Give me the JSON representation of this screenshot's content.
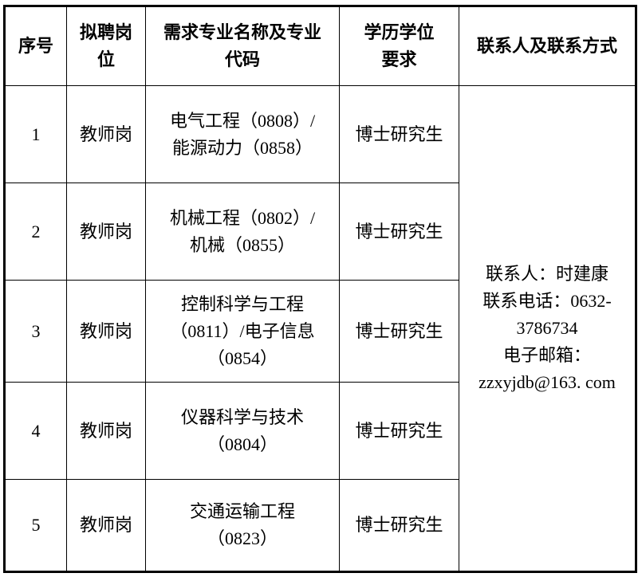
{
  "table": {
    "headers": {
      "no": "序号",
      "position": "拟聘岗\n位",
      "major": "需求专业名称及专业\n代码",
      "degree": "学历学位\n要求",
      "contact": "联系人及联系方式"
    },
    "rows": [
      {
        "no": "1",
        "position": "教师岗",
        "major": "电气工程（0808）/\n能源动力（0858）",
        "degree": "博士研究生"
      },
      {
        "no": "2",
        "position": "教师岗",
        "major": "机械工程（0802）/\n机械（0855）",
        "degree": "博士研究生"
      },
      {
        "no": "3",
        "position": "教师岗",
        "major": "控制科学与工程\n（0811）/电子信息\n（0854）",
        "degree": "博士研究生"
      },
      {
        "no": "4",
        "position": "教师岗",
        "major": "仪器科学与技术\n（0804）",
        "degree": "博士研究生"
      },
      {
        "no": "5",
        "position": "教师岗",
        "major": "交通运输工程\n（0823）",
        "degree": "博士研究生"
      }
    ],
    "contact": {
      "text": "联系人：时建康\n联系电话：0632-\n3786734\n电子邮箱：\nzzxyjdb@163. com",
      "person": "时建康",
      "phone": "0632-3786734",
      "email": "zzxyjdb@163. com"
    },
    "border_color": "#000000",
    "text_color": "#000000",
    "background_color": "#ffffff"
  }
}
